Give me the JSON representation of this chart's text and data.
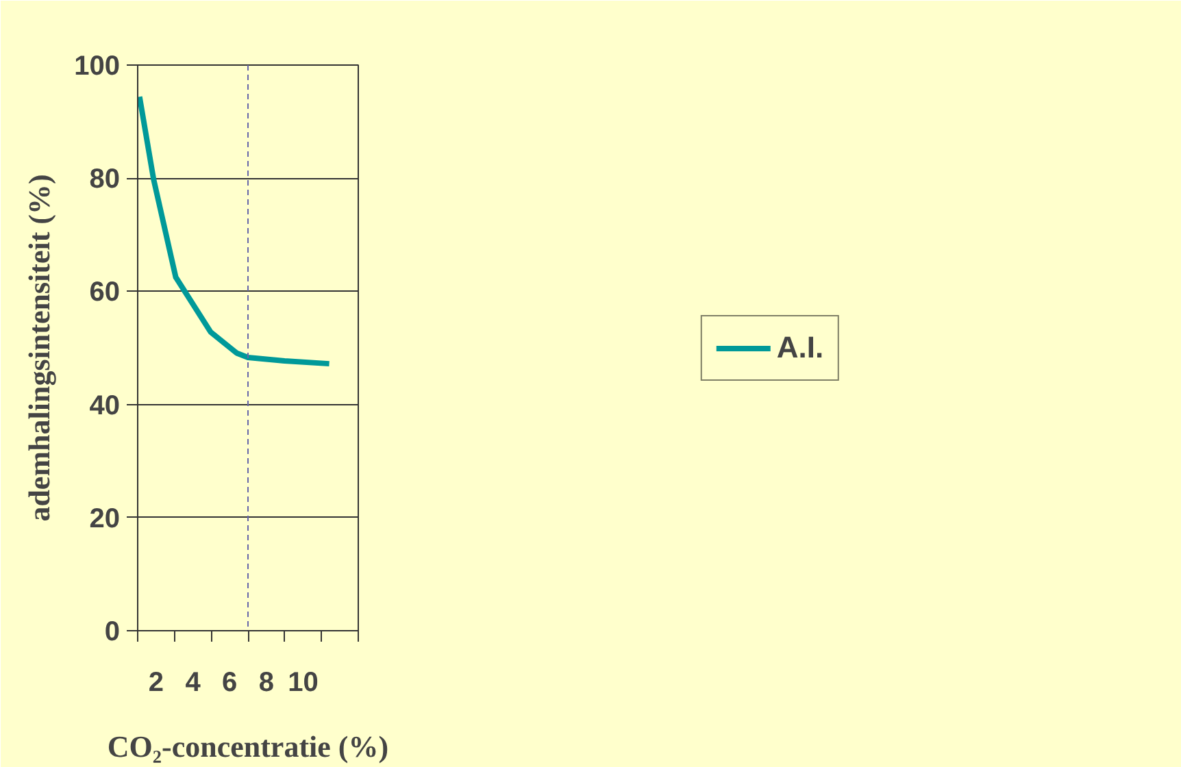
{
  "chart_data": {
    "type": "line",
    "xlabel": "CO₂-concentratie (%)",
    "ylabel": "ademhalingsintensiteit (%)",
    "x": [
      1.1,
      1.86,
      3.07,
      4.97,
      6.38,
      7.0,
      8.99,
      11.42
    ],
    "series": [
      {
        "name": "A.I.",
        "color": "#009999",
        "values": [
          94.4,
          79.9,
          62.5,
          52.8,
          49.1,
          48.3,
          47.7,
          47.2
        ]
      }
    ],
    "xlim": [
      1,
      13
    ],
    "xticks": [
      2,
      4,
      6,
      8,
      10,
      {
        "value": 1,
        "label": null
      },
      {
        "value": 3,
        "label": null
      },
      {
        "value": 5,
        "label": null
      },
      {
        "value": 7,
        "label": null
      },
      {
        "value": 9,
        "label": null
      },
      {
        "value": 11,
        "label": null
      },
      {
        "value": 13,
        "label": null
      }
    ],
    "ylim": [
      0,
      100
    ],
    "yticks": [
      0,
      20,
      40,
      60,
      80,
      100
    ],
    "ref_lines": [
      {
        "axis": "x",
        "value": 7,
        "color": "#6666aa",
        "line_style": "dashed"
      }
    ],
    "grid": "y",
    "legend": "right",
    "marker": "none",
    "line_style": "solid"
  }
}
